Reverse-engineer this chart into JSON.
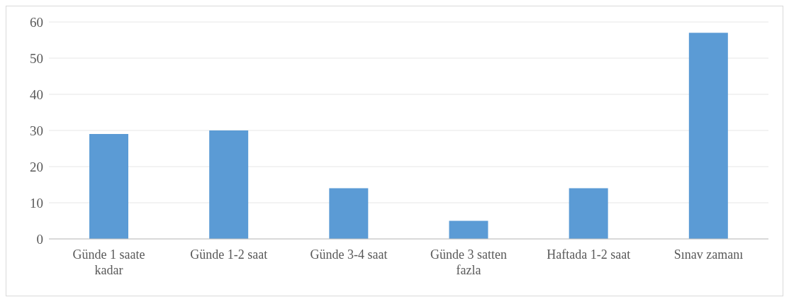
{
  "chart_data": {
    "type": "bar",
    "categories": [
      "Günde 1 saate kadar",
      "Günde 1-2 saat",
      "Günde 3-4 saat",
      "Günde 3 satten fazla",
      "Haftada 1-2 saat",
      "Sınav zamanı"
    ],
    "values": [
      29,
      30,
      14,
      5,
      14,
      57
    ],
    "color": "#5b9bd5",
    "ylim": [
      0,
      60
    ],
    "yticks": [
      0,
      10,
      20,
      30,
      40,
      50,
      60
    ],
    "grid": "y"
  }
}
